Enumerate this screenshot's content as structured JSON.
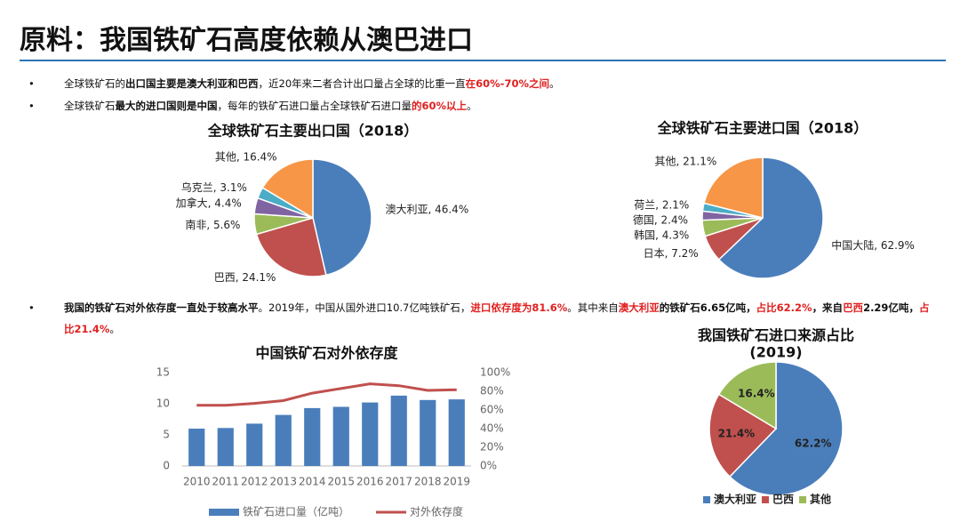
{
  "header": {
    "title": "原料：我国铁矿石高度依赖从澳巴进口"
  },
  "bullets": [
    [
      {
        "text": "全球铁矿石的",
        "style": "normal"
      },
      {
        "text": "出口国主要是澳大利亚和巴西",
        "style": "bold"
      },
      {
        "text": "，近20年来二者合计出口量占全球的比重一直",
        "style": "normal"
      },
      {
        "text": "在60%-70%之间",
        "style": "red"
      },
      {
        "text": "。",
        "style": "normal"
      }
    ],
    [
      {
        "text": "全球铁矿石",
        "style": "normal"
      },
      {
        "text": "最大的进口国则是中国",
        "style": "bold"
      },
      {
        "text": "，每年的铁矿石进口量占全球铁矿石进口量",
        "style": "normal"
      },
      {
        "text": "的60%以上",
        "style": "red"
      },
      {
        "text": "。",
        "style": "normal"
      }
    ],
    [
      {
        "text": "我国的铁矿石对外依存度一直处于较高水平",
        "style": "bold"
      },
      {
        "text": "。2019年，中国从国外进口10.7亿吨铁矿石，",
        "style": "normal"
      },
      {
        "text": "进口依存度为81.6%",
        "style": "red"
      },
      {
        "text": "。其中来自",
        "style": "normal"
      },
      {
        "text": "澳大利亚",
        "style": "red"
      },
      {
        "text": "的铁矿石6.65亿吨，",
        "style": "bold"
      },
      {
        "text": "占比62.2%",
        "style": "red"
      },
      {
        "text": "，来自",
        "style": "bold"
      },
      {
        "text": "巴西",
        "style": "red"
      },
      {
        "text": "2.29亿吨，",
        "style": "bold"
      },
      {
        "text": "占比21.4%",
        "style": "red"
      },
      {
        "text": "。",
        "style": "normal"
      }
    ]
  ],
  "chart_data": [
    {
      "type": "pie",
      "title": "全球铁矿石主要出口国（2018）",
      "categories": [
        "澳大利亚",
        "巴西",
        "南非",
        "加拿大",
        "乌克兰",
        "其他"
      ],
      "values": [
        46.4,
        24.1,
        5.6,
        4.4,
        3.1,
        16.4
      ],
      "value_labels": [
        "澳大利亚, 46.4%",
        "巴西, 24.1%",
        "南非, 5.6%",
        "加拿大, 4.4%",
        "乌克兰, 3.1%",
        "其他, 16.4%"
      ],
      "colors": [
        "#4a7ebb",
        "#c0504d",
        "#9bbb59",
        "#8064a2",
        "#4bacc6",
        "#f79646"
      ],
      "label_position": "outside"
    },
    {
      "type": "pie",
      "title": "全球铁矿石主要进口国（2018）",
      "categories": [
        "中国大陆",
        "日本",
        "韩国",
        "德国",
        "荷兰",
        "其他"
      ],
      "values": [
        62.9,
        7.2,
        4.3,
        2.4,
        2.1,
        21.1
      ],
      "value_labels": [
        "中国大陆, 62.9%",
        "日本, 7.2%",
        "韩国, 4.3%",
        "德国, 2.4%",
        "荷兰, 2.1%",
        "其他, 21.1%"
      ],
      "colors": [
        "#4a7ebb",
        "#c0504d",
        "#9bbb59",
        "#8064a2",
        "#4bacc6",
        "#f79646"
      ],
      "label_position": "outside"
    },
    {
      "type": "combo",
      "title": "中国铁矿石对外依存度",
      "categories": [
        "2010",
        "2011",
        "2012",
        "2013",
        "2014",
        "2015",
        "2016",
        "2017",
        "2018",
        "2019"
      ],
      "series": [
        {
          "name": "铁矿石进口量（亿吨）",
          "type": "bar",
          "color": "#4a7ebb",
          "values": [
            6.0,
            6.1,
            6.8,
            8.2,
            9.3,
            9.5,
            10.2,
            11.3,
            10.6,
            10.7
          ]
        },
        {
          "name": "对外依存度",
          "type": "line",
          "axis": "y2",
          "color": "#c0504d",
          "values": [
            65,
            65,
            67,
            70,
            78,
            83,
            88,
            86,
            81,
            81.6
          ]
        }
      ],
      "ylim": [
        0,
        15
      ],
      "yticks": [
        0,
        5,
        10,
        15
      ],
      "y2lim": [
        0,
        100
      ],
      "y2ticks": [
        {
          "value": 0,
          "label": "0%"
        },
        {
          "value": 20,
          "label": "20%"
        },
        {
          "value": 40,
          "label": "40%"
        },
        {
          "value": 60,
          "label": "60%"
        },
        {
          "value": 80,
          "label": "80%"
        },
        {
          "value": 100,
          "label": "100%"
        }
      ],
      "grid": false,
      "legend": "bottom"
    },
    {
      "type": "pie",
      "title": [
        "我国铁矿石进口来源占比",
        "(2019)"
      ],
      "categories": [
        "澳大利亚",
        "巴西",
        "其他"
      ],
      "values": [
        62.2,
        21.4,
        16.4
      ],
      "value_labels": [
        "62.2%",
        "21.4%",
        "16.4%"
      ],
      "colors": [
        "#4a7ebb",
        "#c0504d",
        "#9bbb59"
      ],
      "label_position": "inside",
      "legend": "bottom"
    }
  ]
}
